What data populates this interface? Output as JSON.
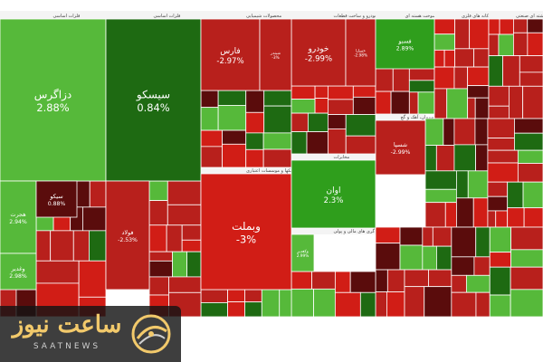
{
  "chart_data": {
    "type": "treemap",
    "colors": {
      "strong_up": "#2f9e1c",
      "up": "#56b93a",
      "dark_up": "#1e6a12",
      "down": "#b8201c",
      "strong_down": "#d11d16",
      "deep_down": "#5a0c0c",
      "sector_bar": "#f4f4f4"
    },
    "sectors": [
      {
        "name": "فلزات اساسی"
      },
      {
        "name": "محصولات شیمیایی"
      },
      {
        "name": "خودرو و ساخت قطعات"
      },
      {
        "name": "فراورده های نفتی، کک و سوخت هسته ای"
      },
      {
        "name": "استخراج کانه های فلزی"
      },
      {
        "name": "شرکتهای چند رشته ای صنعتی"
      },
      {
        "name": "مخابرات"
      },
      {
        "name": "سیمان، آهک و گچ"
      },
      {
        "name": "بانکها و موسسات اعتباری"
      },
      {
        "name": "واسطه گری های مالی و پولی"
      }
    ],
    "tiles": [
      {
        "symbol": "دزاگرس",
        "change": "2.88%",
        "tone": "up"
      },
      {
        "symbol": "سیسکو",
        "change": "0.84%",
        "tone": "dark_up"
      },
      {
        "symbol": "فارس",
        "change": "-2.97%",
        "tone": "down"
      },
      {
        "symbol": "خودرو",
        "change": "-2.99%",
        "tone": "down"
      },
      {
        "symbol": "شبندر",
        "change": "-3%",
        "tone": "down"
      },
      {
        "symbol": "خساپا",
        "change": "-2.98%",
        "tone": "down"
      },
      {
        "symbol": "فسبو",
        "change": "2.89%",
        "tone": "strong_up"
      },
      {
        "symbol": "هجرت",
        "change": "2.94%",
        "tone": "up"
      },
      {
        "symbol": "سیکو",
        "change": "0.88%",
        "tone": "deep_down"
      },
      {
        "symbol": "فولاد",
        "change": "-2.53%",
        "tone": "down"
      },
      {
        "symbol": "وبملت",
        "change": "-3%",
        "tone": "strong_down"
      },
      {
        "symbol": "اوان",
        "change": "2.3%",
        "tone": "strong_up"
      },
      {
        "symbol": "شسپا",
        "change": "-2.99%",
        "tone": "down"
      },
      {
        "symbol": "وکغدیر",
        "change": "2.99%",
        "tone": "up"
      },
      {
        "symbol": "وغدیر",
        "change": "2.98%",
        "tone": "up"
      }
    ]
  },
  "watermark": {
    "title": "ساعت نیوز",
    "subtitle": "SAATNEWS",
    "mark_icon": "clock-swirl-icon"
  }
}
